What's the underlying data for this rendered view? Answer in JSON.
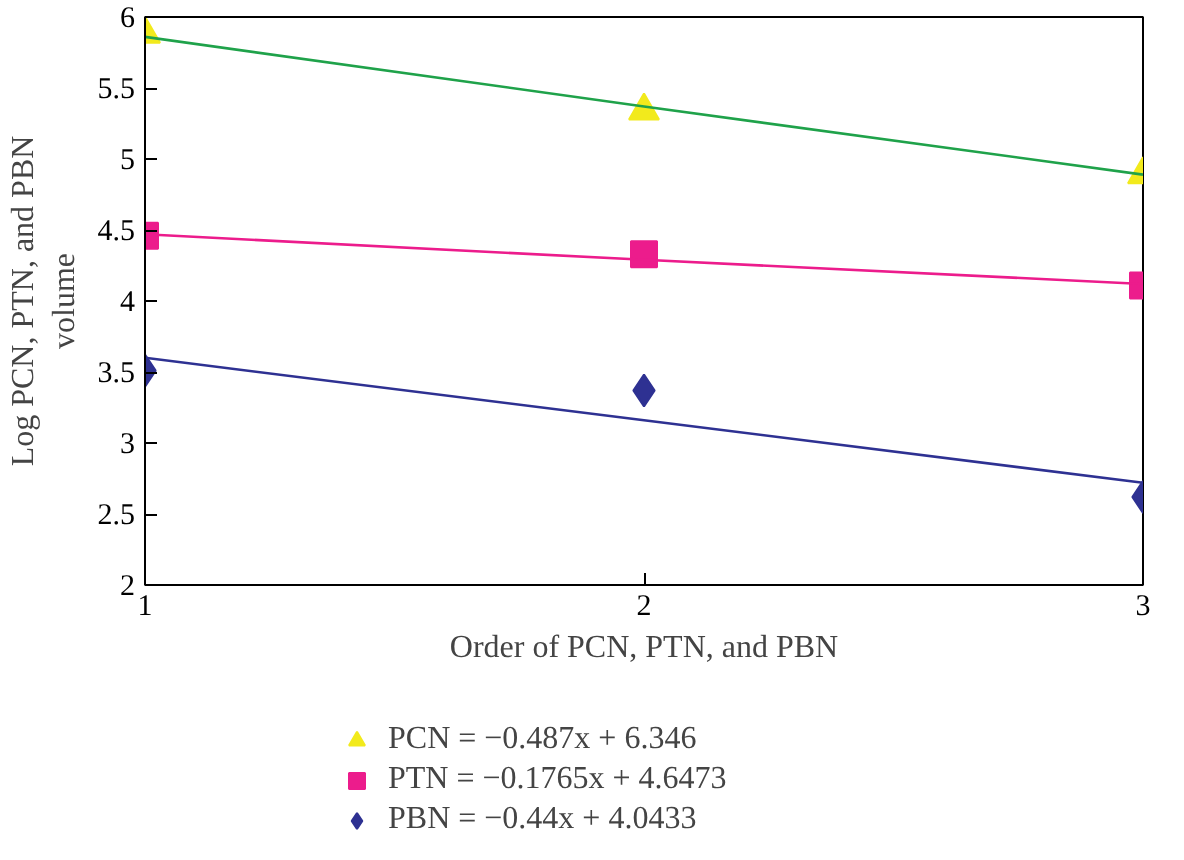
{
  "chart_data": {
    "type": "scatter",
    "xlabel": "Order of PCN, PTN, and PBN",
    "ylabel": "Log PCN, PTN, and PBN\nvolume",
    "x": [
      1,
      2,
      3
    ],
    "xlim": [
      1,
      3
    ],
    "xticks": [
      1,
      2,
      3
    ],
    "ylim": [
      2,
      6
    ],
    "yticks": [
      2,
      2.5,
      3,
      3.5,
      4,
      4.5,
      5,
      5.5,
      6
    ],
    "grid": false,
    "legend": "bottom",
    "series": [
      {
        "name": "PCN = −0.487x + 6.346",
        "color": "#f2ea1c",
        "marker": "triangle",
        "values": [
          5.88,
          5.34,
          4.89
        ]
      },
      {
        "name": "PTN = −0.1765x + 4.6473",
        "color": "#ec1c8c",
        "marker": "square",
        "values": [
          4.46,
          4.33,
          4.11
        ]
      },
      {
        "name": "PBN = −0.44x + 4.0433",
        "color": "#2e3192",
        "marker": "diamond",
        "values": [
          3.51,
          3.37,
          2.62
        ]
      },
      {
        "type": "line",
        "color": "#1fa24a",
        "values": [
          5.86,
          5.37,
          4.89
        ]
      },
      {
        "type": "line",
        "color": "#ec1c8c",
        "values": [
          4.47,
          4.29,
          4.12
        ]
      },
      {
        "type": "line",
        "color": "#2e3192",
        "values": [
          3.6,
          3.16,
          2.72
        ]
      }
    ]
  }
}
